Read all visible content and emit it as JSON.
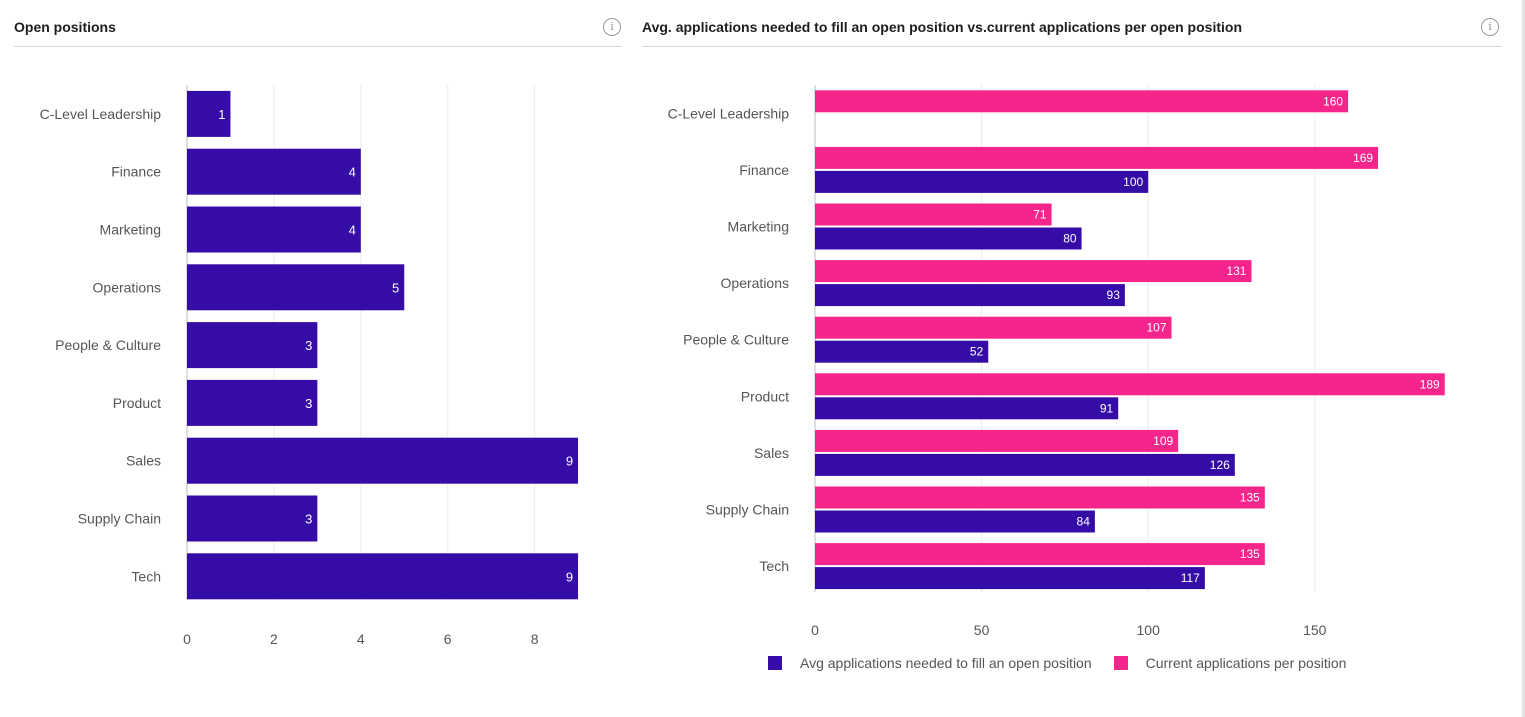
{
  "colors": {
    "primary": "#360ca6",
    "secondary": "#f5258c",
    "grid": "#ebebeb",
    "axis": "#555555"
  },
  "left_panel": {
    "title": "Open positions",
    "info_icon": "info-icon"
  },
  "right_panel": {
    "title": "Avg. applications needed to fill an open position vs.current applications per open position",
    "info_icon": "info-icon"
  },
  "chart_data": [
    {
      "type": "bar",
      "orientation": "horizontal",
      "title": "Open positions",
      "categories": [
        "C-Level Leadership",
        "Finance",
        "Marketing",
        "Operations",
        "People & Culture",
        "Product",
        "Sales",
        "Supply Chain",
        "Tech"
      ],
      "values": [
        1,
        4,
        4,
        5,
        3,
        3,
        9,
        3,
        9
      ],
      "xlim": [
        0,
        10
      ],
      "xticks": [
        0,
        2,
        4,
        6,
        8
      ],
      "xtick_labels": [
        "0",
        "2",
        "4",
        "6",
        "8"
      ],
      "grid": true
    },
    {
      "type": "bar",
      "orientation": "horizontal",
      "title": "Avg. applications needed to fill an open position vs.current applications per open position",
      "categories": [
        "C-Level Leadership",
        "Finance",
        "Marketing",
        "Operations",
        "People & Culture",
        "Product",
        "Sales",
        "Supply Chain",
        "Tech"
      ],
      "series": [
        {
          "name": "Current applications per position",
          "values": [
            160,
            169,
            71,
            131,
            107,
            189,
            109,
            135,
            135
          ]
        },
        {
          "name": "Avg applications needed to fill an open position",
          "values": [
            null,
            100,
            80,
            93,
            52,
            91,
            126,
            84,
            117
          ]
        }
      ],
      "xlim": [
        0,
        200
      ],
      "xticks": [
        0,
        50,
        100,
        150
      ],
      "xtick_labels": [
        "0",
        "50",
        "100",
        "150"
      ],
      "legend": [
        {
          "name": "Avg applications needed to fill an open position",
          "color": "#360ca6"
        },
        {
          "name": "Current applications per position",
          "color": "#f5258c"
        }
      ],
      "legend_position": "bottom",
      "grid": true
    }
  ]
}
